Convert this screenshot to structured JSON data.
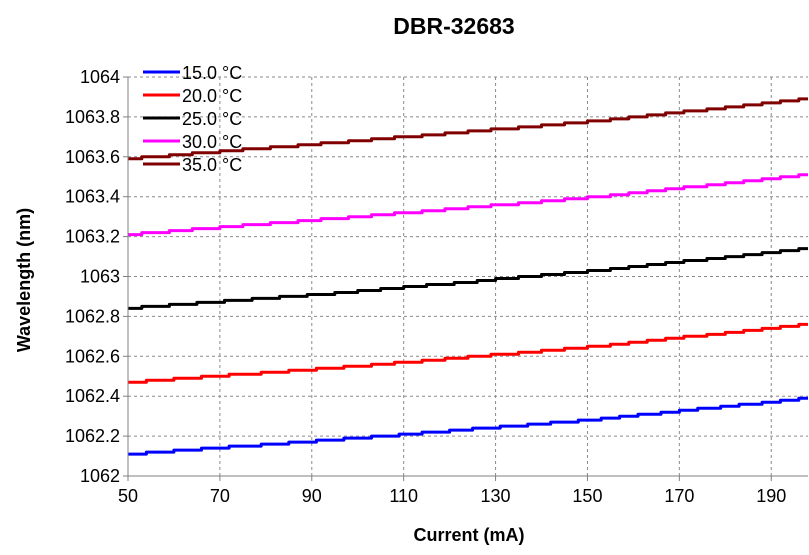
{
  "chart_data": {
    "type": "line",
    "title": "DBR-32683",
    "xlabel": "Current (mA)",
    "ylabel": "Wavelength (nm)",
    "xlim": [
      50,
      198
    ],
    "ylim": [
      1062,
      1064
    ],
    "xticks": [
      50,
      70,
      90,
      110,
      130,
      150,
      170,
      190
    ],
    "yticks": [
      1062,
      1062.2,
      1062.4,
      1062.6,
      1062.8,
      1063,
      1063.2,
      1063.4,
      1063.6,
      1063.8,
      1064
    ],
    "xtick_labels": [
      "50",
      "70",
      "90",
      "110",
      "130",
      "150",
      "170",
      "190"
    ],
    "ytick_labels": [
      "1062",
      "1062.2",
      "1062.4",
      "1062.6",
      "1062.8",
      "1063",
      "1063.2",
      "1063.4",
      "1063.6",
      "1063.8",
      "1064"
    ],
    "grid": true,
    "legend_position": "top-left",
    "series": [
      {
        "name": "15.0 °C",
        "color": "#0000ff",
        "x": [
          50,
          100,
          150,
          198
        ],
        "values": [
          1062.11,
          1062.19,
          1062.28,
          1062.39
        ]
      },
      {
        "name": "20.0 °C",
        "color": "#ff0000",
        "x": [
          50,
          100,
          150,
          198
        ],
        "values": [
          1062.47,
          1062.55,
          1062.645,
          1062.76
        ]
      },
      {
        "name": "25.0 °C",
        "color": "#000000",
        "x": [
          50,
          100,
          150,
          198
        ],
        "values": [
          1062.84,
          1062.925,
          1063.025,
          1063.14
        ]
      },
      {
        "name": "30.0 °C",
        "color": "#ff00ff",
        "x": [
          50,
          100,
          150,
          198
        ],
        "values": [
          1063.21,
          1063.3,
          1063.395,
          1063.51
        ]
      },
      {
        "name": "35.0 °C",
        "color": "#800000",
        "x": [
          50,
          100,
          150,
          198
        ],
        "values": [
          1063.59,
          1063.68,
          1063.775,
          1063.89
        ]
      }
    ]
  }
}
